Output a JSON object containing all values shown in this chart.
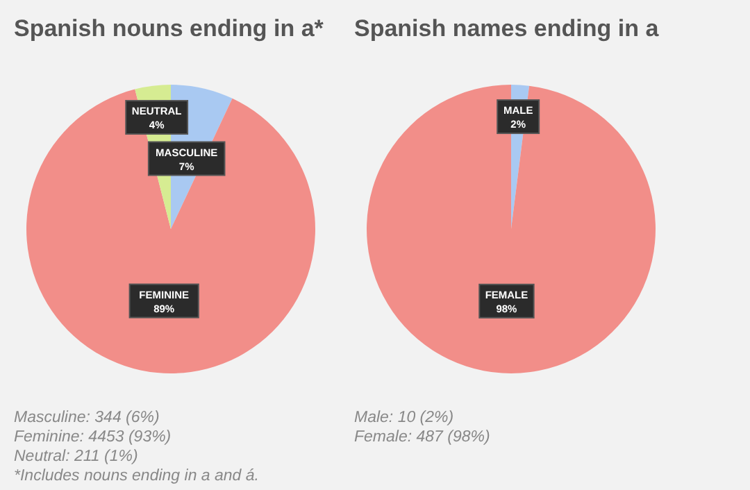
{
  "chart_data": [
    {
      "type": "pie",
      "title": "Spanish nouns ending in a*",
      "categories": [
        "MASCULINE",
        "FEMININE",
        "NEUTRAL"
      ],
      "values": [
        7,
        89,
        4
      ],
      "value_labels": [
        "7%",
        "89%",
        "4%"
      ],
      "colors": [
        "#a9c9f2",
        "#f28e89",
        "#d6ec92"
      ],
      "annotations": [
        "Masculine: 344 (6%)",
        "Feminine: 4453 (93%)",
        "Neutral: 211 (1%)",
        "*Includes nouns ending in a and á."
      ]
    },
    {
      "type": "pie",
      "title": "Spanish names ending in a",
      "categories": [
        "MALE",
        "FEMALE"
      ],
      "values": [
        2,
        98
      ],
      "value_labels": [
        "2%",
        "98%"
      ],
      "colors": [
        "#a9c9f2",
        "#f28e89"
      ],
      "annotations": [
        "Male: 10 (2%)",
        "Female: 487 (98%)"
      ]
    }
  ]
}
